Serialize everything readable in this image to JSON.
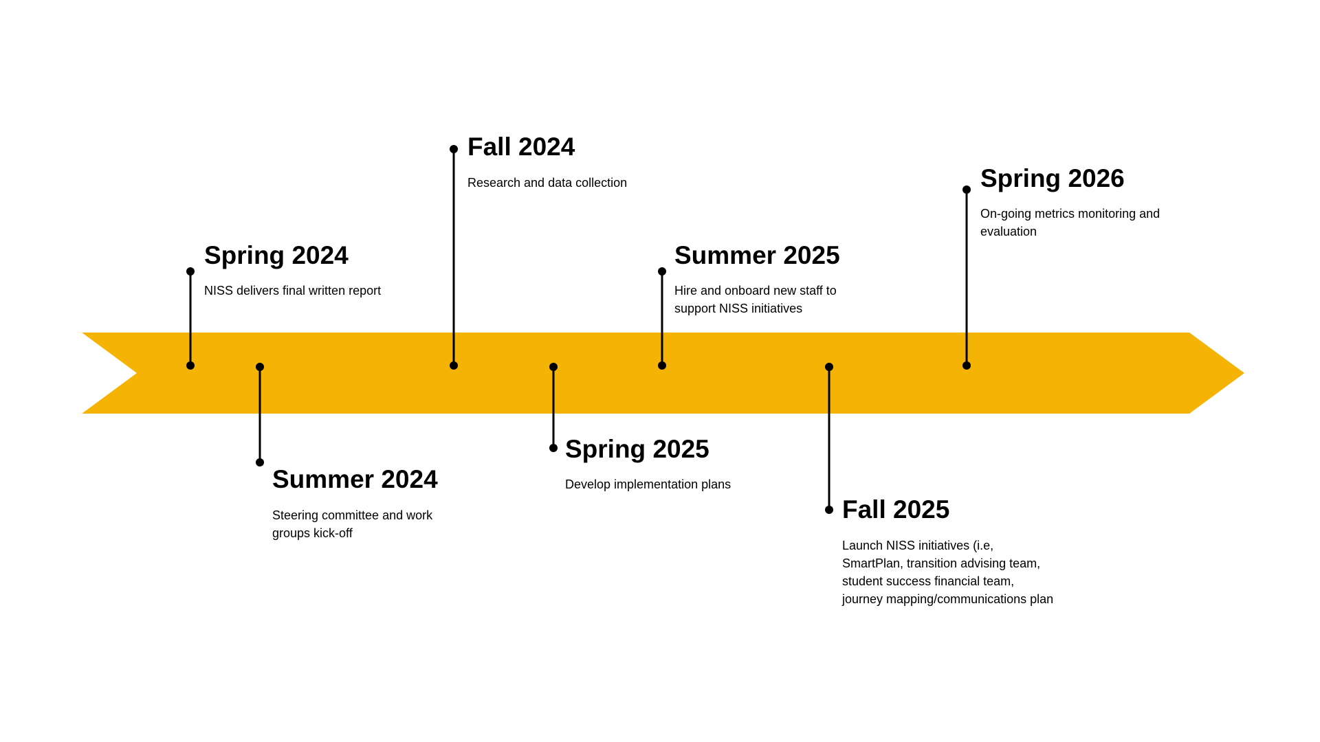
{
  "colors": {
    "arrow": "#F5B405",
    "marker": "#000000"
  },
  "milestones": [
    {
      "title": "Spring 2024",
      "description": "NISS delivers final written report",
      "side": "above"
    },
    {
      "title": "Summer 2024",
      "description": "Steering committee and work\ngroups kick-off",
      "side": "below"
    },
    {
      "title": "Fall 2024",
      "description": "Research and data collection",
      "side": "above"
    },
    {
      "title": "Spring 2025",
      "description": "Develop implementation plans",
      "side": "below"
    },
    {
      "title": "Summer 2025",
      "description": "Hire and onboard new staff to\nsupport NISS initiatives",
      "side": "above"
    },
    {
      "title": "Fall 2025",
      "description": "Launch NISS initiatives (i.e,\nSmartPlan, transition advising team,\nstudent success financial team,\njourney mapping/communications plan",
      "side": "below"
    },
    {
      "title": "Spring 2026",
      "description": "On-going metrics monitoring and\nevaluation",
      "side": "above"
    }
  ]
}
